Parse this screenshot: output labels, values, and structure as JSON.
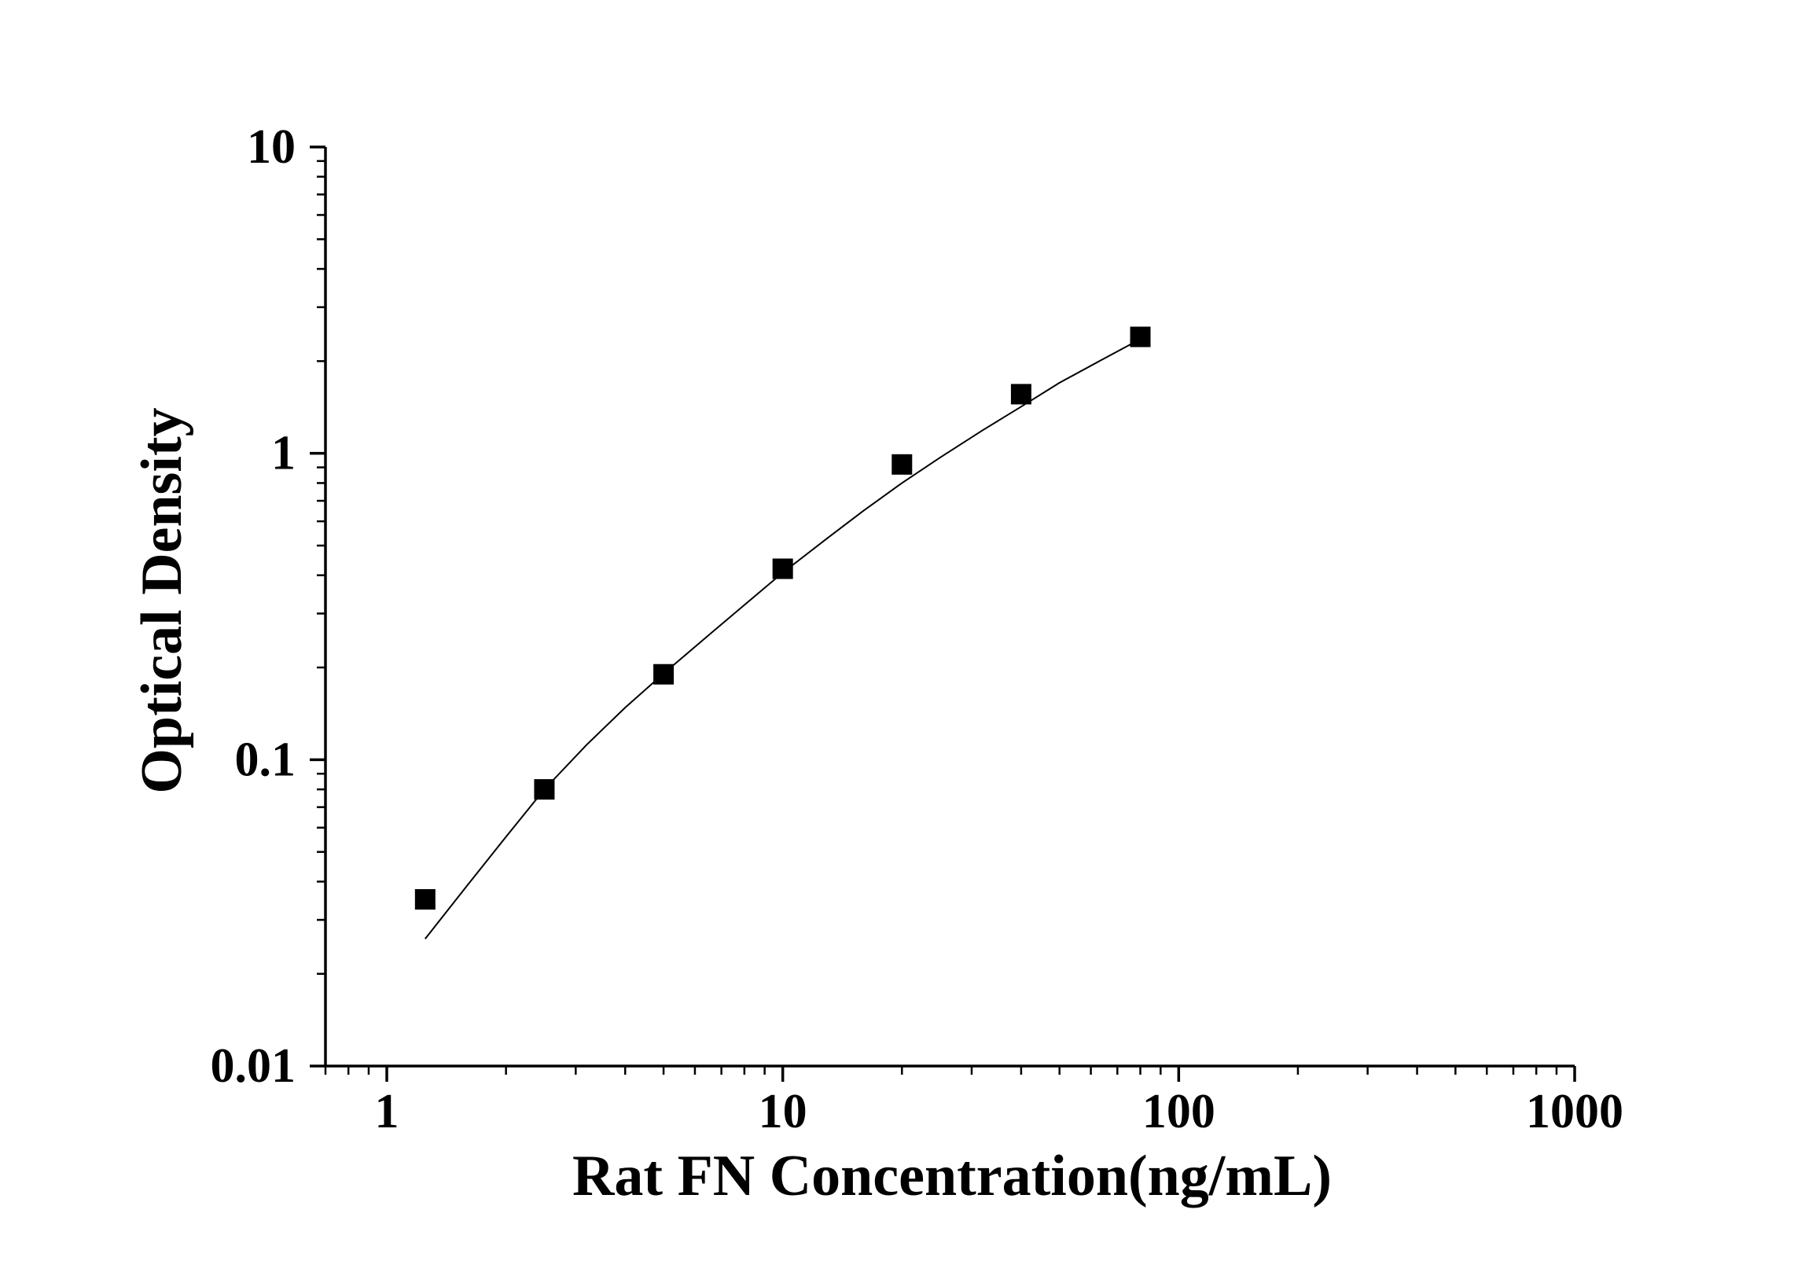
{
  "chart_data": {
    "type": "scatter",
    "title": "",
    "xlabel": "Rat FN Concentration(ng/mL)",
    "ylabel": "Optical Density",
    "x_scale": "log",
    "y_scale": "log",
    "xlim": [
      0.7,
      1000
    ],
    "ylim": [
      0.01,
      10
    ],
    "x_ticks": [
      "1",
      "10",
      "100",
      "1000"
    ],
    "y_ticks": [
      "0.01",
      "0.1",
      "1",
      "10"
    ],
    "grid": false,
    "legend": "none",
    "marker": "square",
    "color": "#000000",
    "series": [
      {
        "x": [
          1.25,
          2.5,
          5,
          10,
          20,
          40,
          80
        ],
        "y": [
          0.035,
          0.08,
          0.19,
          0.42,
          0.92,
          1.56,
          2.4
        ]
      }
    ],
    "fit_curve": {
      "x": [
        1.25,
        1.6,
        2.0,
        2.5,
        3.2,
        4.0,
        5.0,
        6.5,
        8.0,
        10,
        13,
        16,
        20,
        25,
        32,
        40,
        50,
        63,
        80
      ],
      "y": [
        0.026,
        0.039,
        0.056,
        0.08,
        0.112,
        0.148,
        0.191,
        0.255,
        0.32,
        0.408,
        0.53,
        0.65,
        0.8,
        0.97,
        1.19,
        1.42,
        1.7,
        2.0,
        2.36
      ]
    }
  }
}
